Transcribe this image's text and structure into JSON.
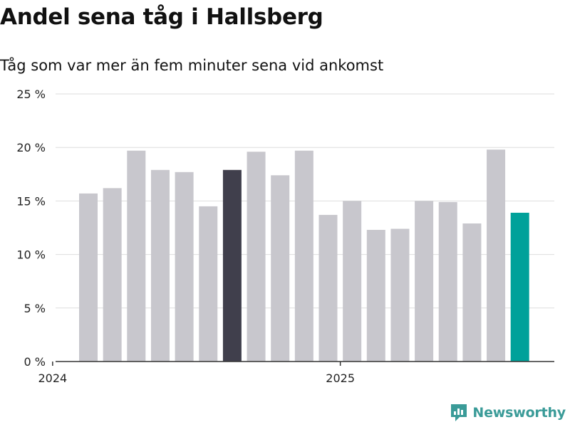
{
  "header": {
    "title": "Andel sena tåg i Hallsberg",
    "subtitle": "Tåg som var mer än fem minuter sena vid ankomst"
  },
  "brand": {
    "name": "Newsworthy",
    "icon": "newsworthy-logo-icon"
  },
  "colors": {
    "bar_default": "#c8c7cd",
    "bar_highlight_dark": "#403f4c",
    "bar_highlight_teal": "#00a19a",
    "grid": "#dddddd",
    "axis": "#333333",
    "brand": "#3a9b98"
  },
  "chart_data": {
    "type": "bar",
    "title": "Andel sena tåg i Hallsberg",
    "subtitle": "Tåg som var mer än fem minuter sena vid ankomst",
    "xlabel": "",
    "ylabel": "",
    "y_unit": "%",
    "ylim": [
      0,
      25
    ],
    "y_ticks": [
      {
        "value": 0,
        "label": "0 %"
      },
      {
        "value": 5,
        "label": "5 %"
      },
      {
        "value": 10,
        "label": "10 %"
      },
      {
        "value": 15,
        "label": "15 %"
      },
      {
        "value": 20,
        "label": "20 %"
      },
      {
        "value": 25,
        "label": "25 %"
      }
    ],
    "x_ticks": [
      {
        "date": "2024-01",
        "label": "2024"
      },
      {
        "date": "2025-01",
        "label": "2025"
      }
    ],
    "grid": true,
    "categories": [
      "2024-02",
      "2024-03",
      "2024-04",
      "2024-05",
      "2024-06",
      "2024-07",
      "2024-08",
      "2024-09",
      "2024-10",
      "2024-11",
      "2024-12",
      "2025-01",
      "2025-02",
      "2025-03",
      "2025-04",
      "2025-05",
      "2025-06",
      "2025-07",
      "2025-08"
    ],
    "values": [
      15.7,
      16.2,
      19.7,
      17.9,
      17.7,
      14.5,
      17.9,
      19.6,
      17.4,
      19.7,
      13.7,
      15.0,
      12.3,
      12.4,
      15.0,
      14.9,
      12.9,
      19.8,
      13.9
    ],
    "highlight": {
      "2024-08": "dark",
      "2025-08": "teal"
    }
  }
}
